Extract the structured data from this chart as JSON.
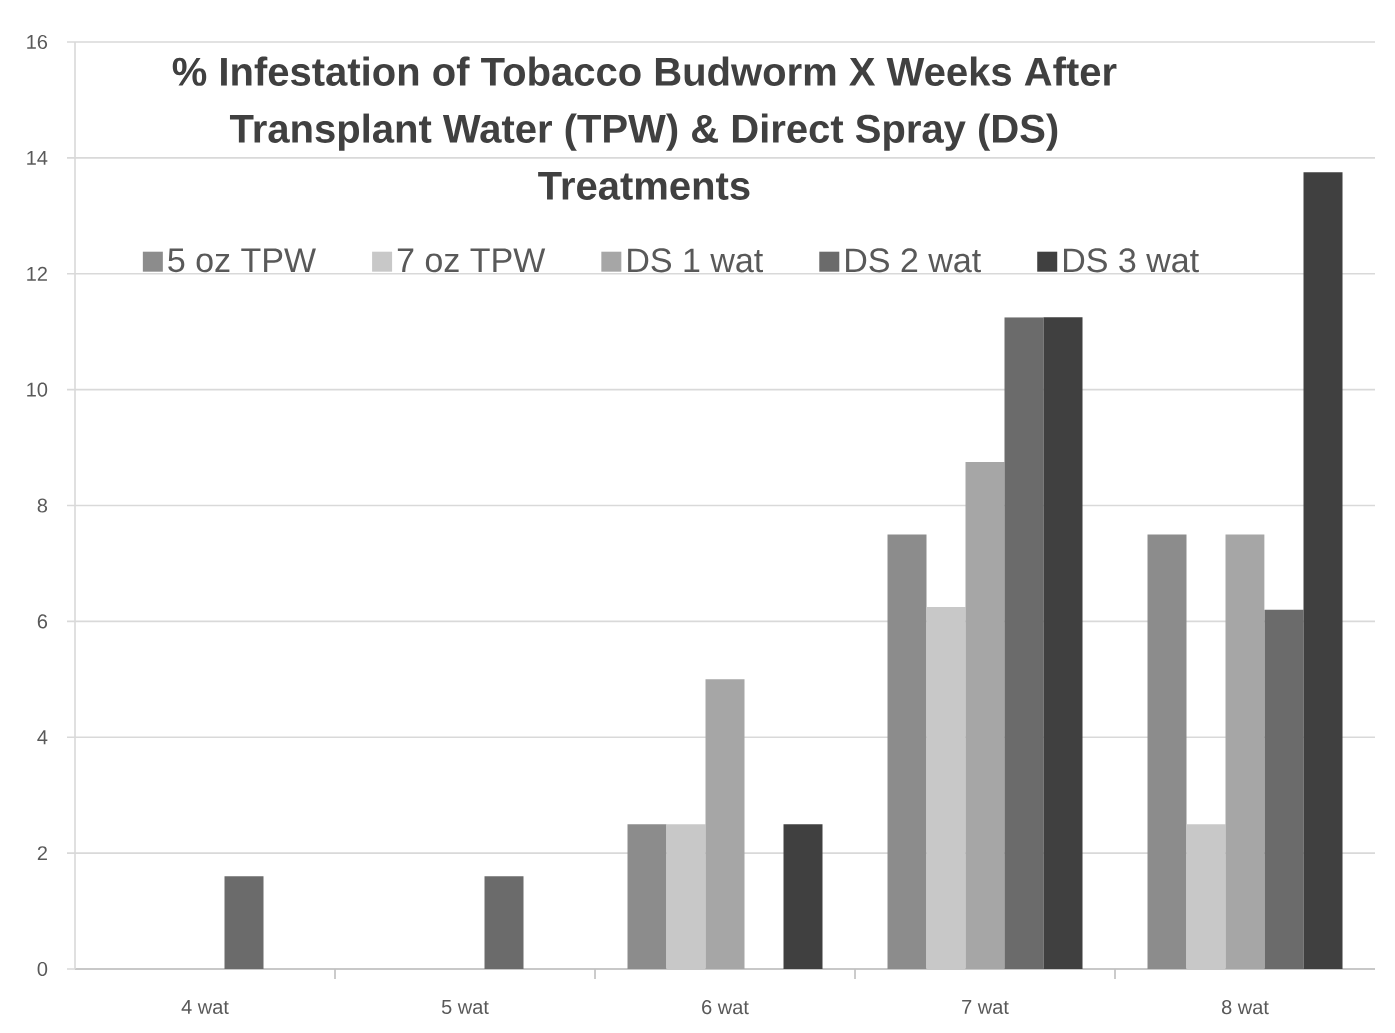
{
  "chart_data": {
    "type": "bar",
    "title": "% Infestation of Tobacco Budworm X Weeks After Transplant Water (TPW) & Direct Spray (DS) Treatments",
    "categories": [
      "4 wat",
      "5 wat",
      "6 wat",
      "7 wat",
      "8 wat"
    ],
    "series": [
      {
        "name": "5 oz TPW",
        "color": "#8c8c8c",
        "values": [
          0,
          0,
          2.5,
          7.5,
          7.5
        ]
      },
      {
        "name": "7 oz TPW",
        "color": "#c8c8c8",
        "values": [
          0,
          0,
          2.5,
          6.25,
          2.5
        ]
      },
      {
        "name": "DS 1 wat",
        "color": "#a6a6a6",
        "values": [
          0,
          0,
          5,
          8.75,
          7.5
        ]
      },
      {
        "name": "DS 2 wat",
        "color": "#6b6b6b",
        "values": [
          1.6,
          1.6,
          0,
          11.25,
          6.2
        ]
      },
      {
        "name": "DS 3 wat",
        "color": "#404040",
        "values": [
          0,
          0,
          2.5,
          11.25,
          13.75
        ]
      }
    ],
    "ylim": [
      0,
      16
    ],
    "yticks": [
      0,
      2,
      4,
      6,
      8,
      10,
      12,
      14,
      16
    ],
    "grid": "y",
    "legend": "top"
  }
}
